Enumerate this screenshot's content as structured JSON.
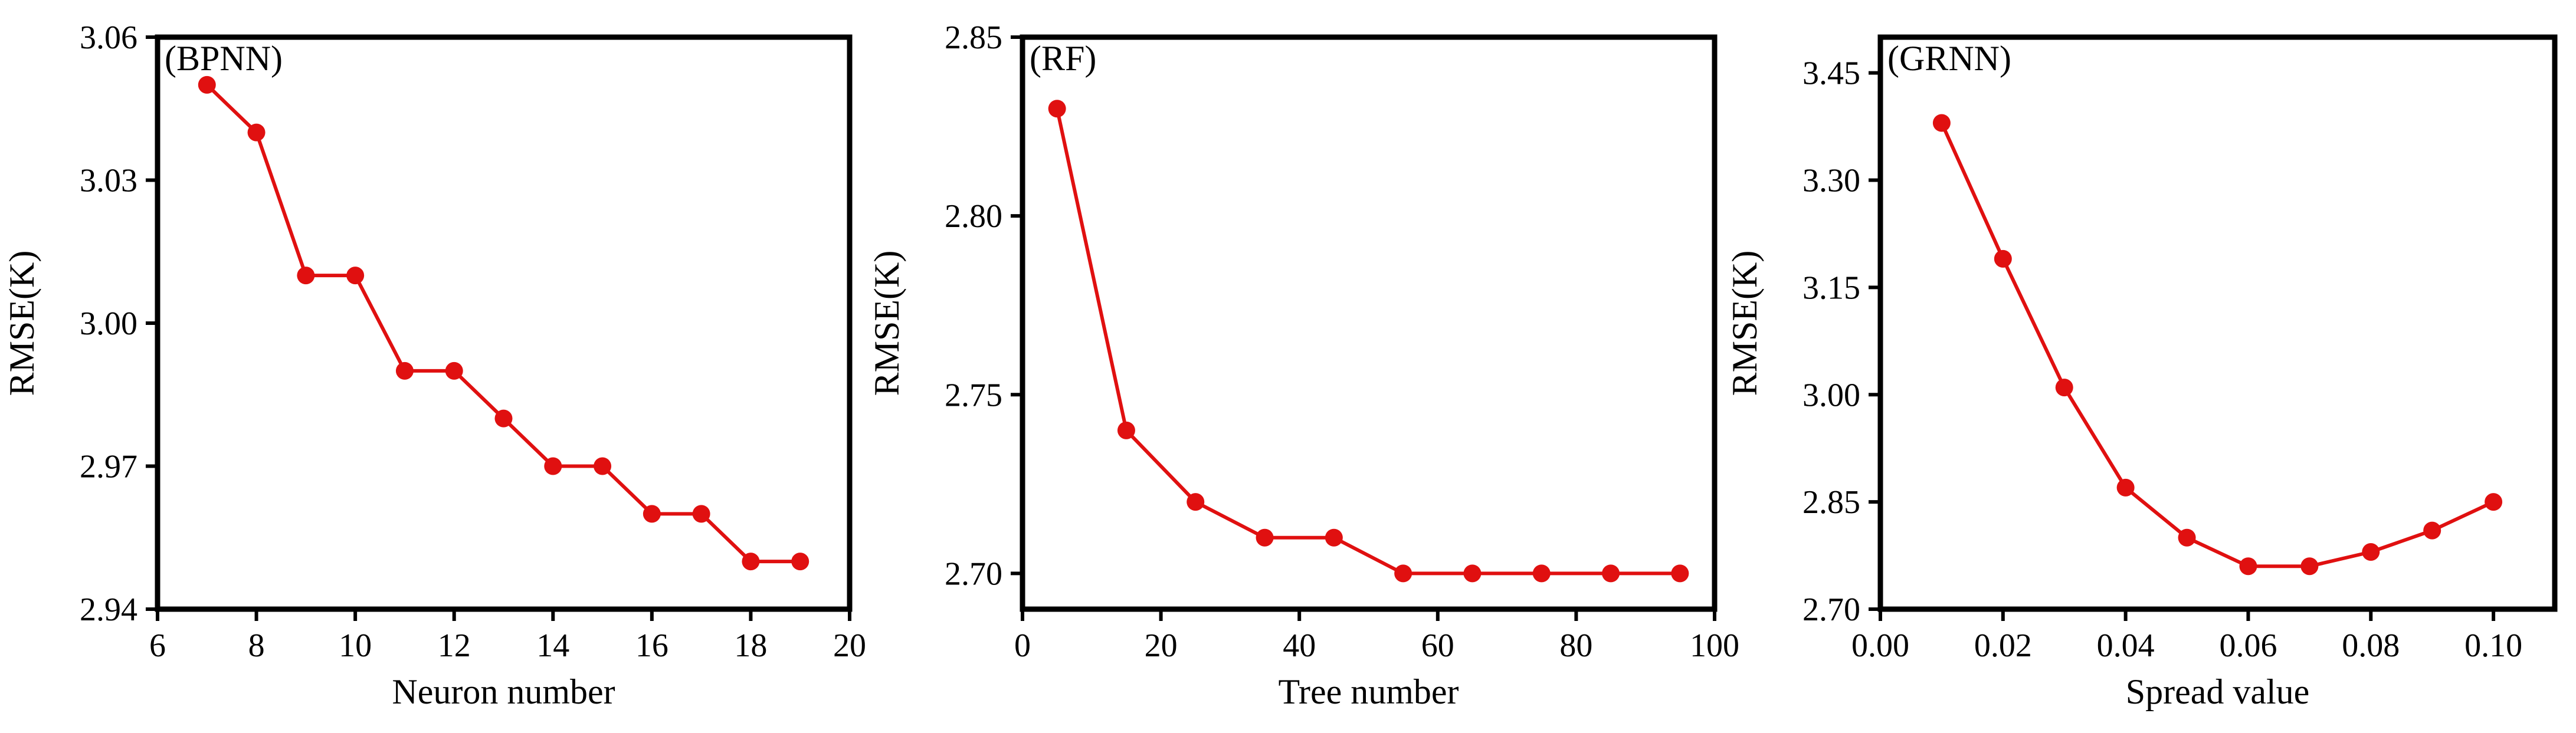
{
  "chart_data": [
    {
      "type": "line",
      "panel_label": "(BPNN)",
      "xlabel": "Neuron number",
      "ylabel": "RMSE(K)",
      "xlim": [
        6,
        20
      ],
      "ylim": [
        2.94,
        3.06
      ],
      "xticks": [
        6,
        8,
        10,
        12,
        14,
        16,
        18,
        20
      ],
      "yticks": [
        2.94,
        2.97,
        3.0,
        3.03,
        3.06
      ],
      "xtick_labels": [
        "6",
        "8",
        "10",
        "12",
        "14",
        "16",
        "18",
        "20"
      ],
      "ytick_labels": [
        "2.94",
        "2.97",
        "3.00",
        "3.03",
        "3.06"
      ],
      "x": [
        7,
        8,
        9,
        10,
        11,
        12,
        13,
        14,
        15,
        16,
        17,
        18,
        19
      ],
      "values": [
        3.05,
        3.04,
        3.01,
        3.01,
        2.99,
        2.99,
        2.98,
        2.97,
        2.97,
        2.96,
        2.96,
        2.95,
        2.95
      ],
      "color": "#e01010",
      "grid": false
    },
    {
      "type": "line",
      "panel_label": "(RF)",
      "xlabel": "Tree number",
      "ylabel": "RMSE(K)",
      "xlim": [
        0,
        100
      ],
      "ylim": [
        2.69,
        2.85
      ],
      "xticks": [
        0,
        20,
        40,
        60,
        80,
        100
      ],
      "yticks": [
        2.7,
        2.75,
        2.8,
        2.85
      ],
      "xtick_labels": [
        "0",
        "20",
        "40",
        "60",
        "80",
        "100"
      ],
      "ytick_labels": [
        "2.70",
        "2.75",
        "2.80",
        "2.85"
      ],
      "x": [
        5,
        15,
        25,
        35,
        45,
        55,
        65,
        75,
        85,
        95
      ],
      "values": [
        2.83,
        2.74,
        2.72,
        2.71,
        2.71,
        2.7,
        2.7,
        2.7,
        2.7,
        2.7
      ],
      "color": "#e01010",
      "grid": false
    },
    {
      "type": "line",
      "panel_label": "(GRNN)",
      "xlabel": "Spread value",
      "ylabel": "RMSE(K)",
      "xlim": [
        0.0,
        0.11
      ],
      "ylim": [
        2.7,
        3.5
      ],
      "xticks": [
        0.0,
        0.02,
        0.04,
        0.06,
        0.08,
        0.1
      ],
      "yticks": [
        2.7,
        2.85,
        3.0,
        3.15,
        3.3,
        3.45
      ],
      "xtick_labels": [
        "0.00",
        "0.02",
        "0.04",
        "0.06",
        "0.08",
        "0.10"
      ],
      "ytick_labels": [
        "2.70",
        "2.85",
        "3.00",
        "3.15",
        "3.30",
        "3.45"
      ],
      "x": [
        0.01,
        0.02,
        0.03,
        0.04,
        0.05,
        0.06,
        0.07,
        0.08,
        0.09,
        0.1
      ],
      "values": [
        3.38,
        3.19,
        3.01,
        2.87,
        2.8,
        2.76,
        2.76,
        2.78,
        2.81,
        2.85
      ],
      "color": "#e01010",
      "grid": false
    }
  ]
}
